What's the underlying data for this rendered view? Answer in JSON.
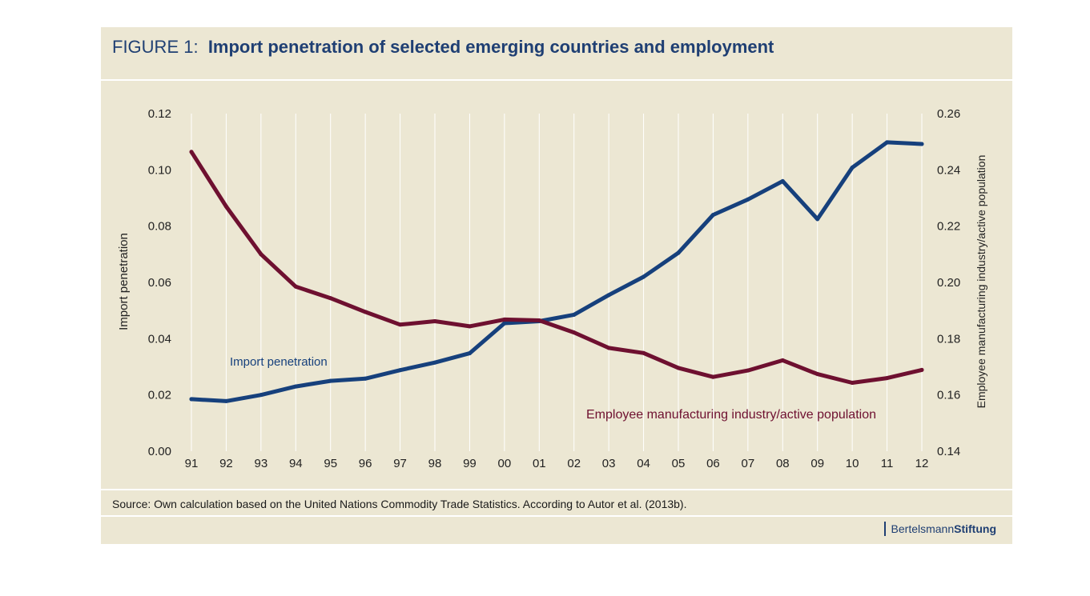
{
  "title_prefix": "FIGURE 1:",
  "title_text": "Import penetration of selected emerging countries and employment",
  "source": "Source: Own calculation based on the United Nations Commodity Trade Statistics. According to Autor et al. (2013b).",
  "logo": {
    "part1": "Bertelsmann",
    "part2": "Stiftung"
  },
  "colors": {
    "background": "#ece7d3",
    "title": "#1f3f73",
    "import_series": "#16407c",
    "employment_series": "#6e1030"
  },
  "chart_data": {
    "type": "line",
    "x": [
      "91",
      "92",
      "93",
      "94",
      "95",
      "96",
      "97",
      "98",
      "99",
      "00",
      "01",
      "02",
      "03",
      "04",
      "05",
      "06",
      "07",
      "08",
      "09",
      "10",
      "11",
      "12"
    ],
    "y_left": {
      "label": "Import penetration",
      "ticks": [
        "0.00",
        "0.02",
        "0.04",
        "0.06",
        "0.08",
        "0.10",
        "0.12"
      ],
      "range": [
        0,
        0.12
      ]
    },
    "y_right": {
      "label": "Employee manufacturing industry/active population",
      "ticks": [
        "0.14",
        "0.16",
        "0.18",
        "0.20",
        "0.22",
        "0.24",
        "0.26"
      ],
      "range": [
        0.14,
        0.26
      ]
    },
    "grid": "vertical",
    "series": [
      {
        "name": "Import penetration",
        "axis": "left",
        "color": "#16407c",
        "values": [
          0.0185,
          0.0178,
          0.02,
          0.023,
          0.025,
          0.0258,
          0.0288,
          0.0315,
          0.0348,
          0.0455,
          0.0462,
          0.0485,
          0.0555,
          0.062,
          0.0705,
          0.084,
          0.0895,
          0.096,
          0.0825,
          0.1008,
          0.1098,
          0.1092
        ]
      },
      {
        "name": "Employee manufacturing industry/active population",
        "axis": "right",
        "color": "#6e1030",
        "values": [
          0.2464,
          0.227,
          0.21,
          0.1985,
          0.1944,
          0.1895,
          0.185,
          0.1862,
          0.1844,
          0.1868,
          0.1865,
          0.1822,
          0.1767,
          0.1749,
          0.1696,
          0.1664,
          0.1687,
          0.1723,
          0.1674,
          0.1643,
          0.166,
          0.1689
        ]
      }
    ]
  }
}
